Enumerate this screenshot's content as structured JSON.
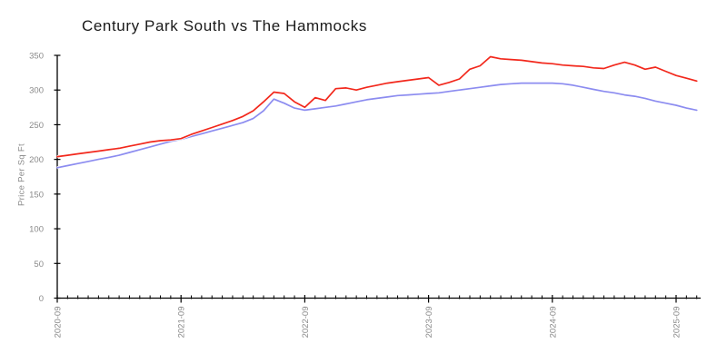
{
  "chart_data": {
    "type": "line",
    "title": "Century Park South vs The Hammocks",
    "ylabel": "Price Per Sq Ft",
    "xlabel": "",
    "ylim": [
      0,
      350
    ],
    "yticks": [
      0,
      50,
      100,
      150,
      200,
      250,
      300,
      350
    ],
    "x_major_tick_labels": [
      "2020-09",
      "2021-09",
      "2022-09",
      "2023-09",
      "2024-09",
      "2025-09"
    ],
    "grid": false,
    "legend": "none",
    "axis_color": "#000000",
    "tick_label_color": "#8a8a8a",
    "x": [
      "2020-09",
      "2020-10",
      "2020-11",
      "2020-12",
      "2021-01",
      "2021-02",
      "2021-03",
      "2021-04",
      "2021-05",
      "2021-06",
      "2021-07",
      "2021-08",
      "2021-09",
      "2021-10",
      "2021-11",
      "2021-12",
      "2022-01",
      "2022-02",
      "2022-03",
      "2022-04",
      "2022-05",
      "2022-06",
      "2022-07",
      "2022-08",
      "2022-09",
      "2022-10",
      "2022-11",
      "2022-12",
      "2023-01",
      "2023-02",
      "2023-03",
      "2023-04",
      "2023-05",
      "2023-06",
      "2023-07",
      "2023-08",
      "2023-09",
      "2023-10",
      "2023-11",
      "2023-12",
      "2024-01",
      "2024-02",
      "2024-03",
      "2024-04",
      "2024-05",
      "2024-06",
      "2024-07",
      "2024-08",
      "2024-09",
      "2024-10",
      "2024-11",
      "2024-12",
      "2025-01",
      "2025-02",
      "2025-03",
      "2025-04",
      "2025-05",
      "2025-06",
      "2025-07",
      "2025-08",
      "2025-09",
      "2025-10",
      "2025-11"
    ],
    "series": [
      {
        "name": "Century Park South",
        "color": "#f2281c",
        "values": [
          204,
          206,
          208,
          210,
          212,
          214,
          216,
          219,
          222,
          225,
          227,
          228,
          230,
          236,
          241,
          246,
          251,
          256,
          262,
          270,
          283,
          297,
          295,
          283,
          275,
          289,
          285,
          302,
          303,
          300,
          304,
          307,
          310,
          312,
          314,
          316,
          318,
          307,
          311,
          316,
          330,
          335,
          348,
          345,
          344,
          343,
          341,
          339,
          338,
          336,
          335,
          334,
          332,
          331,
          336,
          340,
          336,
          330,
          333,
          327,
          321,
          317,
          313
        ]
      },
      {
        "name": "The Hammocks",
        "color": "#8c8cf0",
        "values": [
          188,
          191,
          194,
          197,
          200,
          203,
          206,
          210,
          214,
          218,
          222,
          226,
          229,
          233,
          237,
          241,
          245,
          249,
          253,
          259,
          270,
          287,
          281,
          274,
          271,
          273,
          275,
          277,
          280,
          283,
          286,
          288,
          290,
          292,
          293,
          294,
          295,
          296,
          298,
          300,
          302,
          304,
          306,
          308,
          309,
          310,
          310,
          310,
          310,
          309,
          307,
          304,
          301,
          298,
          296,
          293,
          291,
          288,
          284,
          281,
          278,
          274,
          271
        ]
      }
    ]
  }
}
